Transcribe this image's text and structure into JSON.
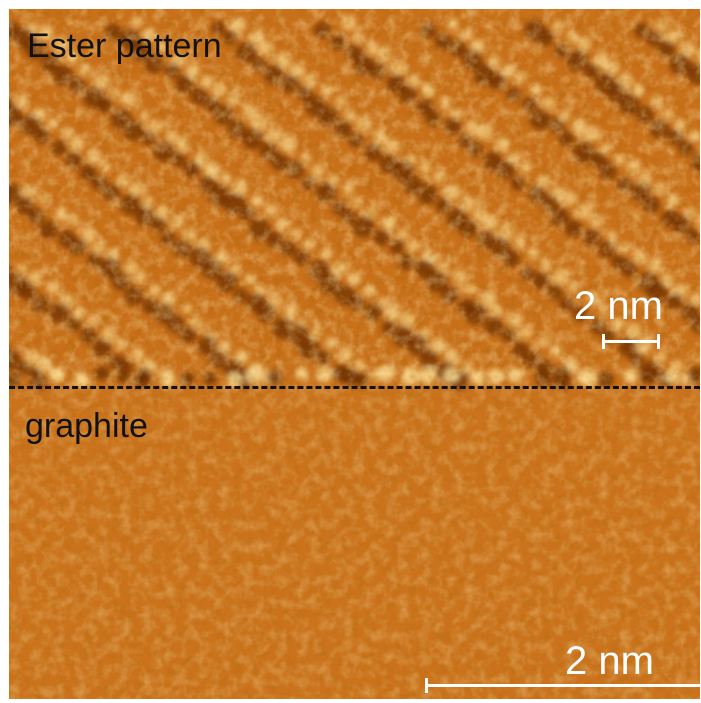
{
  "image": {
    "description_type": "scanning tunneling microscopy image",
    "colormap": {
      "base": "#c46a10",
      "dark": "#6b2e05",
      "bright": "#ffe49a"
    }
  },
  "labels": {
    "top_region": "Ester pattern",
    "bottom_region": "graphite",
    "scale_small": "2 nm",
    "scale_large": "2 nm"
  }
}
